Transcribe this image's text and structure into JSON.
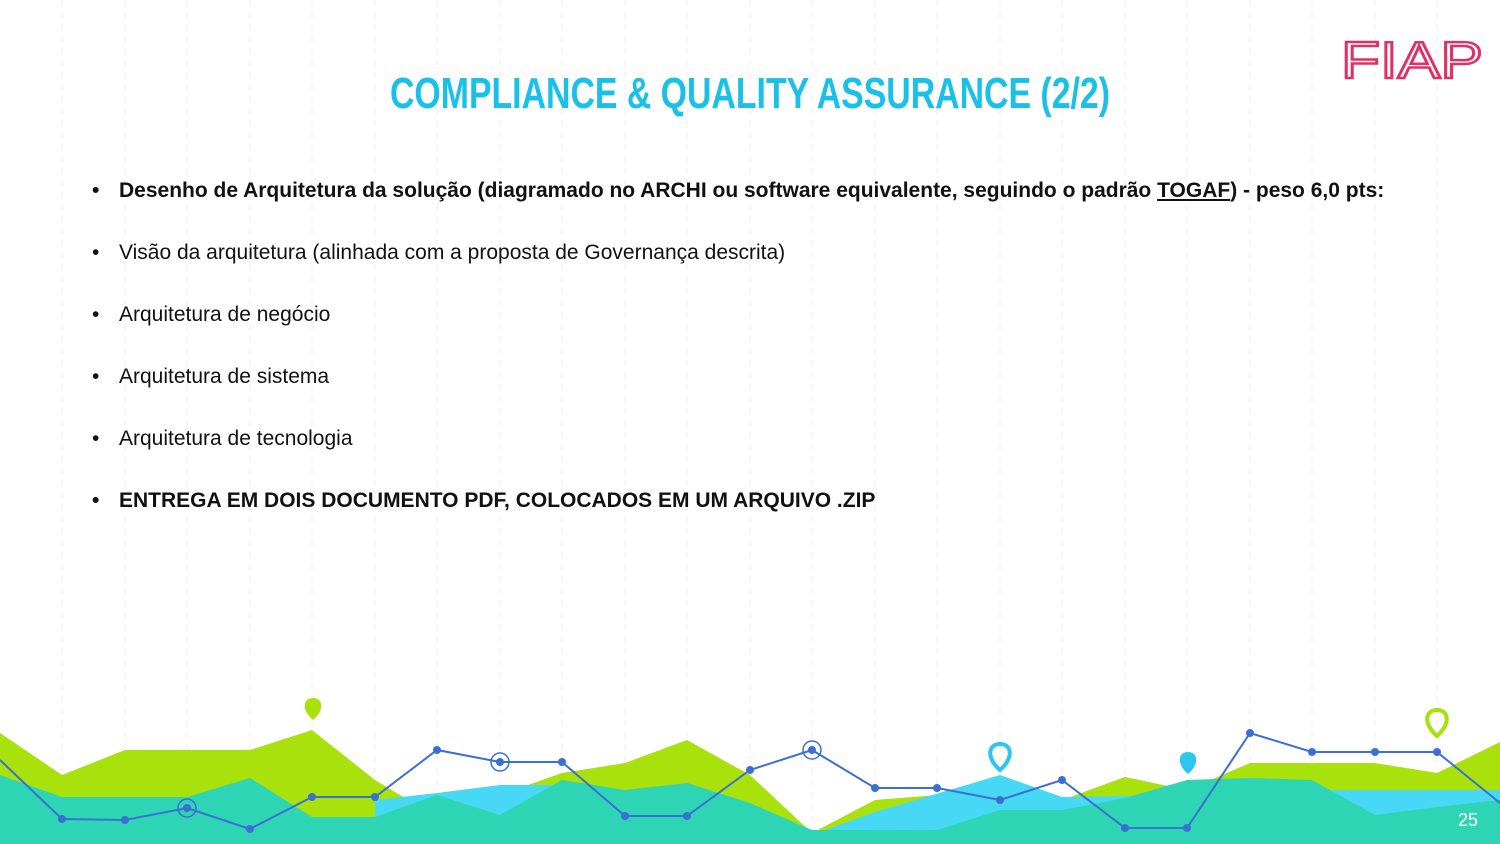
{
  "header": {
    "title": "COMPLIANCE & QUALITY ASSURANCE (2/2)",
    "logo": "FIAP"
  },
  "bullets": [
    {
      "before": "Desenho  de Arquitetura da solução (diagramado no ARCHI ou software equivalente, seguindo o padrão ",
      "link": "TOGAF",
      "after": ") - peso 6,0 pts:",
      "bold": true
    },
    {
      "text": "Visão da arquitetura (alinhada com a proposta de Governança descrita)",
      "bold": false
    },
    {
      "text": "Arquitetura de negócio",
      "bold": false
    },
    {
      "text": "Arquitetura de sistema",
      "bold": false
    },
    {
      "text": "Arquitetura de tecnologia",
      "bold": false
    },
    {
      "text": "ENTREGA EM DOIS DOCUMENTO PDF, COLOCADOS EM UM ARQUIVO .ZIP",
      "bold": true
    }
  ],
  "footer": {
    "page": "25"
  }
}
